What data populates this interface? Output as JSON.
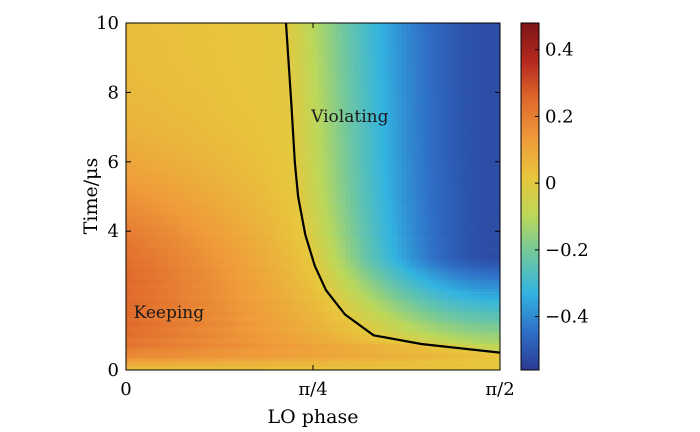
{
  "chart_data": {
    "type": "heatmap",
    "title": "",
    "xlabel": "LO phase",
    "ylabel": "Time/μs",
    "x_range": [
      0,
      1.5708
    ],
    "y_range": [
      0,
      10
    ],
    "x_ticks": [
      {
        "value": 0,
        "label": "0"
      },
      {
        "value": 0.7854,
        "label": "π/4"
      },
      {
        "value": 1.5708,
        "label": "π/2"
      }
    ],
    "y_ticks": [
      {
        "value": 0,
        "label": "0"
      },
      {
        "value": 4,
        "label": "4"
      },
      {
        "value": 6,
        "label": "6"
      },
      {
        "value": 8,
        "label": "8"
      },
      {
        "value": 10,
        "label": "10"
      }
    ],
    "colorbar": {
      "range": [
        -0.56,
        0.48
      ],
      "ticks": [
        {
          "value": 0.4,
          "label": "0.4"
        },
        {
          "value": 0.2,
          "label": "0.2"
        },
        {
          "value": 0,
          "label": "0"
        },
        {
          "value": -0.2,
          "label": "−0.2"
        },
        {
          "value": -0.4,
          "label": "−0.4"
        }
      ],
      "colormap": "parula-like",
      "colors": [
        "#2b3a93",
        "#2f70c8",
        "#33b4e0",
        "#6fc7a0",
        "#bcd85a",
        "#e8c63c",
        "#ef9b3b",
        "#e06a2c",
        "#b5291f",
        "#7d1518"
      ]
    },
    "grid": false,
    "boundary_curve": {
      "name": "zero contour",
      "x": [
        0.672,
        0.695,
        0.709,
        0.723,
        0.753,
        0.793,
        0.84,
        0.92,
        1.04,
        1.24,
        1.5708
      ],
      "y": [
        10.0,
        7.6,
        6.0,
        5.0,
        3.9,
        3.0,
        2.3,
        1.6,
        1.0,
        0.75,
        0.5
      ]
    },
    "annotations": [
      {
        "text": "Keeping",
        "x": 0.18,
        "y": 1.5
      },
      {
        "text": "Violating",
        "x": 0.94,
        "y": 7.15
      }
    ]
  }
}
